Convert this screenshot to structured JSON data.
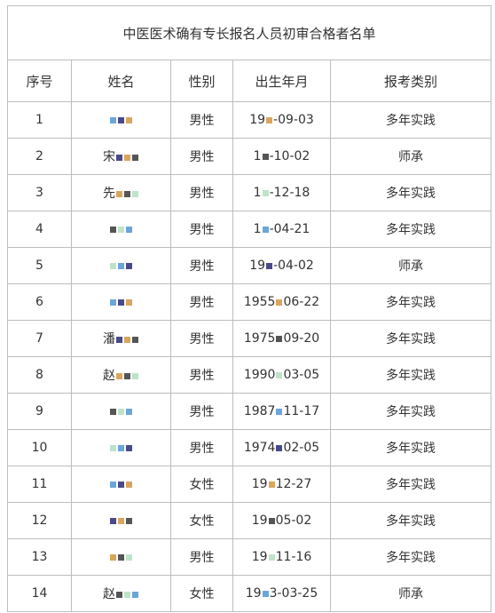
{
  "title": "中医医术确有专长报名人员初审合格者名单",
  "headers": [
    "序号",
    "姓名",
    "性别",
    "出生年月",
    "报考类别"
  ],
  "rows": [
    {
      "no": "1",
      "name": "",
      "gender": "男性",
      "birth": "-09-03",
      "birth_prefix": "19",
      "category": "多年实践"
    },
    {
      "no": "2",
      "name": "宋",
      "gender": "男性",
      "birth": "-10-02",
      "birth_prefix": "1",
      "category": "师承"
    },
    {
      "no": "3",
      "name": "先",
      "gender": "男性",
      "birth": "-12-18",
      "birth_prefix": "1",
      "category": "多年实践"
    },
    {
      "no": "4",
      "name": "",
      "gender": "男性",
      "birth": "-04-21",
      "birth_prefix": "1",
      "category": "多年实践"
    },
    {
      "no": "5",
      "name": "",
      "gender": "男性",
      "birth": "-04-02",
      "birth_prefix": "19",
      "category": "师承"
    },
    {
      "no": "6",
      "name": "",
      "gender": "男性",
      "birth": "06-22",
      "birth_prefix": "1955",
      "category": "多年实践"
    },
    {
      "no": "7",
      "name": "潘",
      "gender": "男性",
      "birth": "09-20",
      "birth_prefix": "1975",
      "category": "多年实践"
    },
    {
      "no": "8",
      "name": "赵",
      "gender": "男性",
      "birth": "03-05",
      "birth_prefix": "1990",
      "category": "多年实践"
    },
    {
      "no": "9",
      "name": "",
      "gender": "男性",
      "birth": "11-17",
      "birth_prefix": "1987",
      "category": "多年实践"
    },
    {
      "no": "10",
      "name": "",
      "gender": "男性",
      "birth": "02-05",
      "birth_prefix": "1974",
      "category": "多年实践"
    },
    {
      "no": "11",
      "name": "",
      "gender": "女性",
      "birth": "12-27",
      "birth_prefix": "19",
      "category": "多年实践"
    },
    {
      "no": "12",
      "name": "",
      "gender": "女性",
      "birth": "05-02",
      "birth_prefix": "19",
      "category": "多年实践"
    },
    {
      "no": "13",
      "name": "",
      "gender": "男性",
      "birth": "11-16",
      "birth_prefix": "19",
      "category": "多年实践"
    },
    {
      "no": "14",
      "name": "赵",
      "gender": "女性",
      "birth": "3-03-25",
      "birth_prefix": "19",
      "category": "师承"
    }
  ]
}
